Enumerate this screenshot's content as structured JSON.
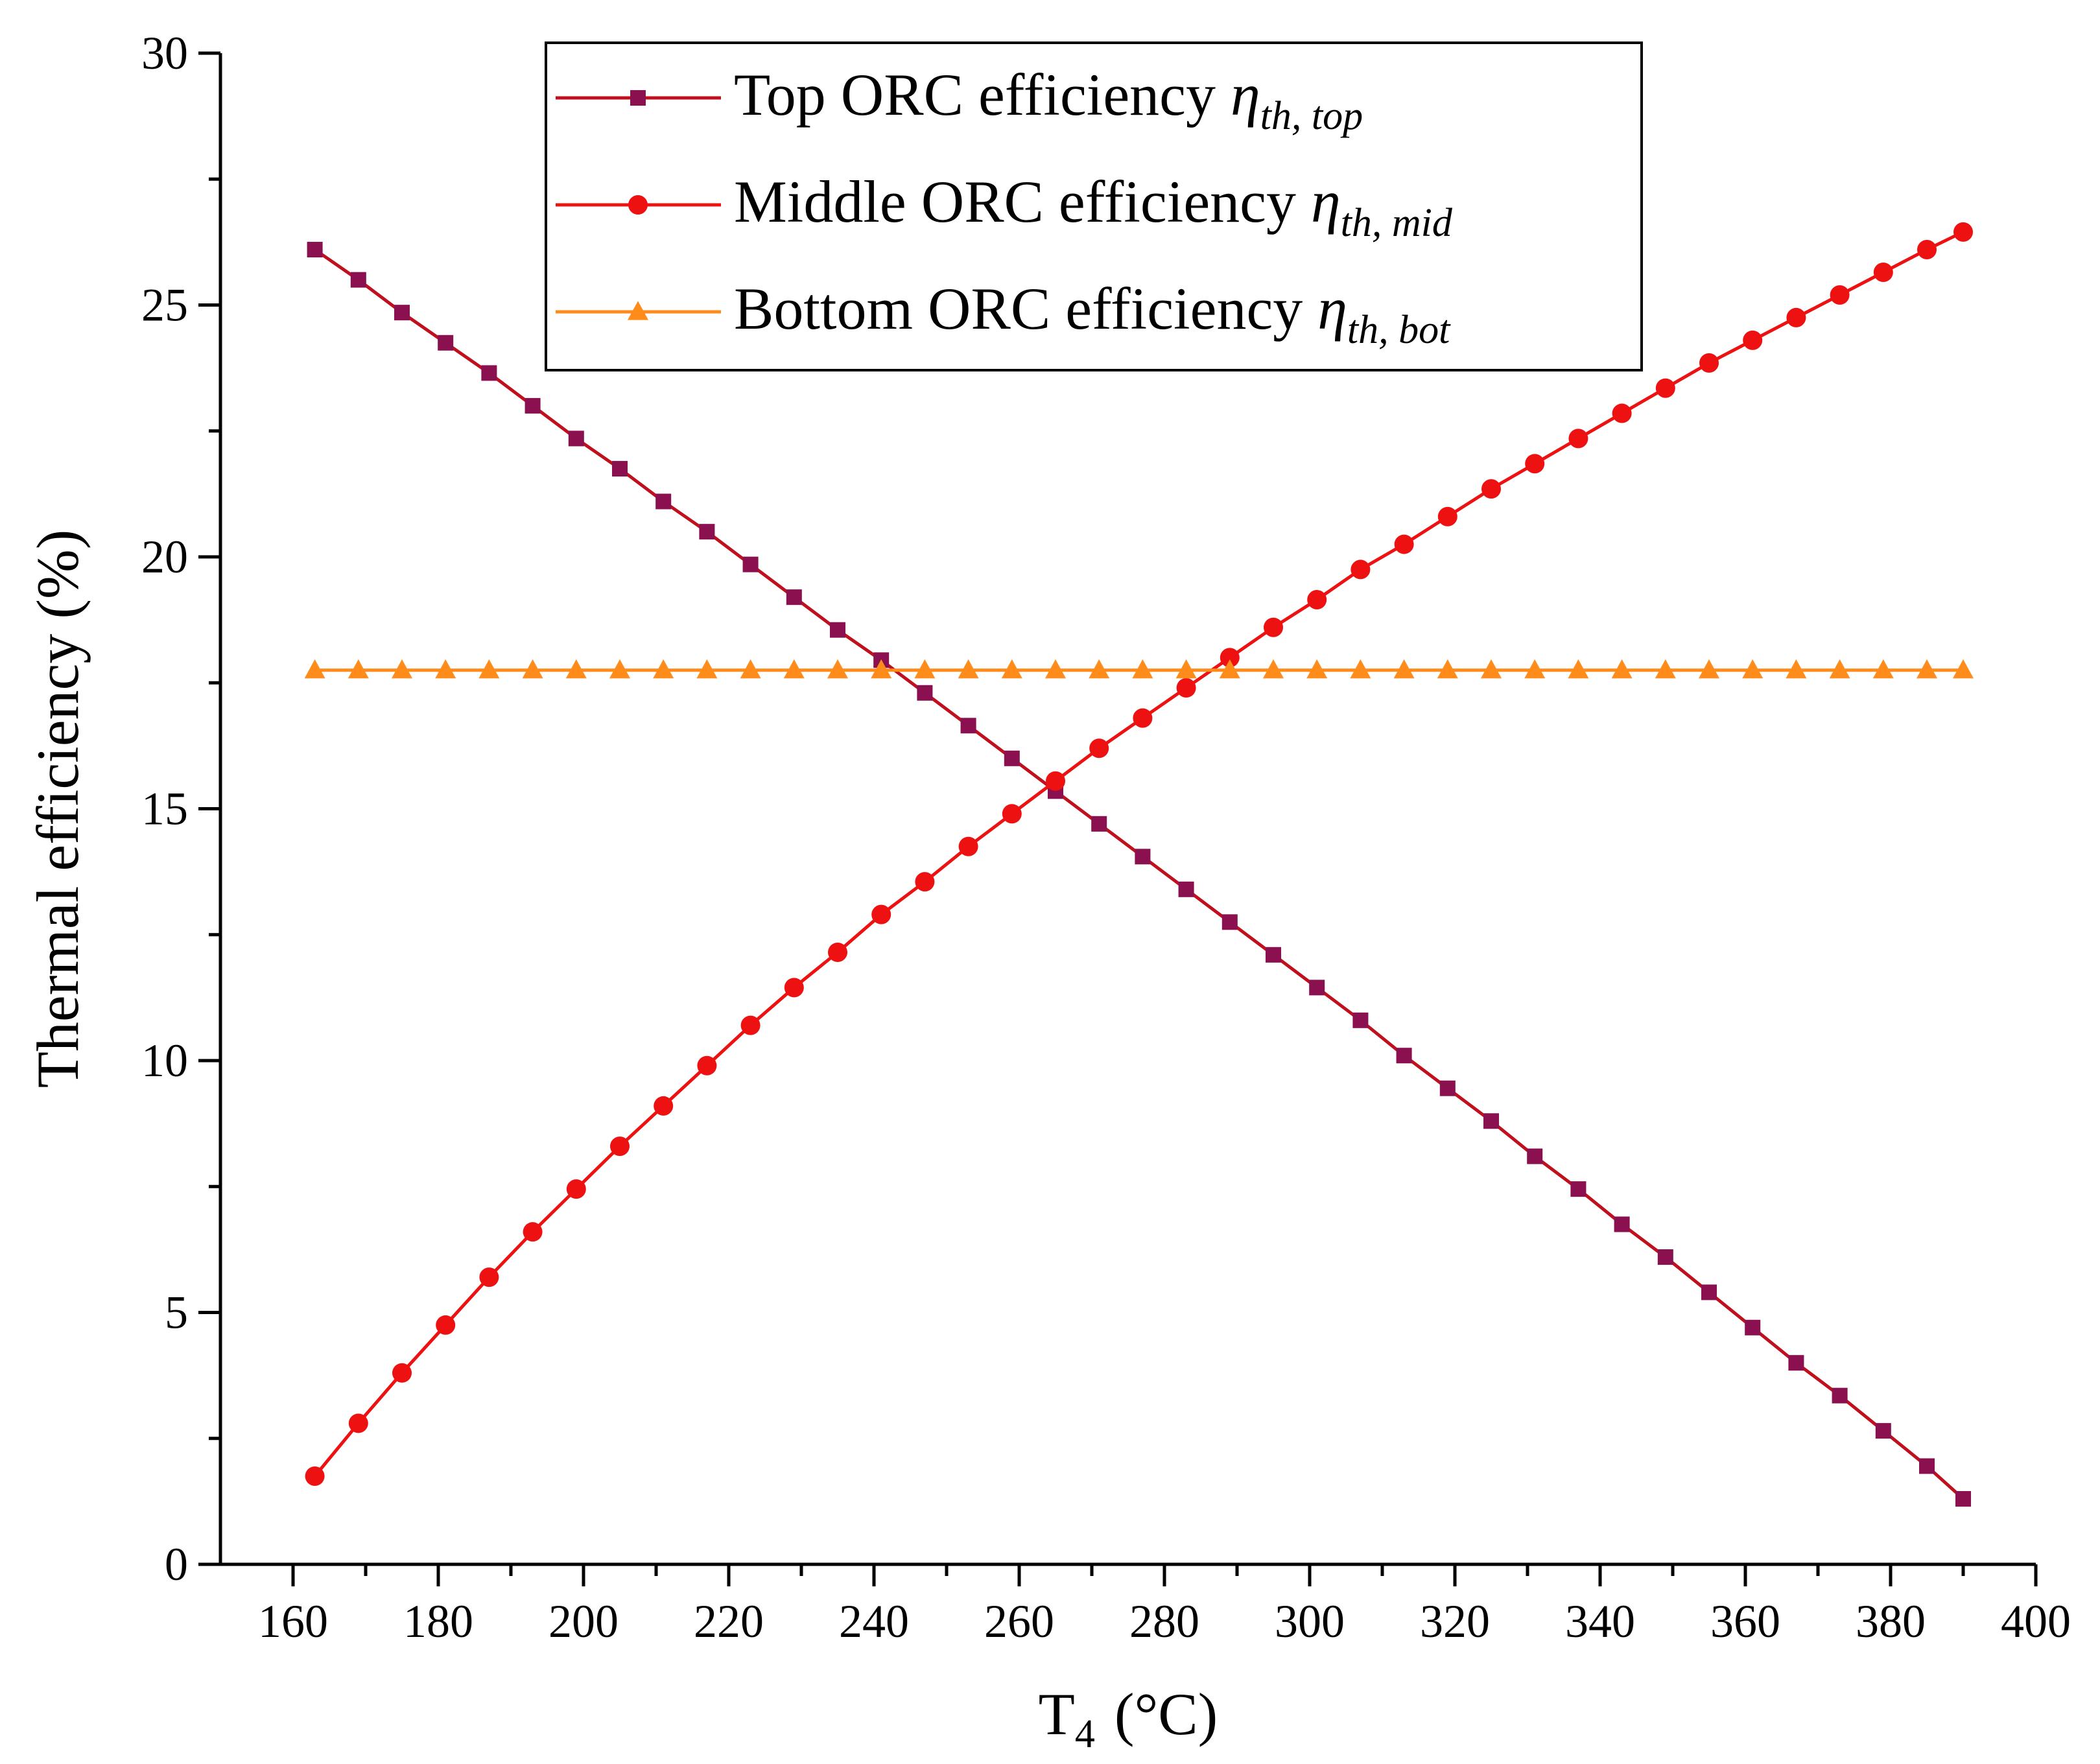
{
  "chart_data": {
    "type": "line",
    "title": "",
    "xlabel": "T",
    "xlabel_sub": "4",
    "xlabel_unit": "(°C)",
    "ylabel": "Thermal efficiency (%)",
    "xlim": [
      150,
      400
    ],
    "ylim": [
      0,
      30
    ],
    "xticks": [
      160,
      180,
      200,
      220,
      240,
      260,
      280,
      300,
      320,
      340,
      360,
      380,
      400
    ],
    "yticks": [
      0,
      5,
      10,
      15,
      20,
      25,
      30
    ],
    "x": [
      163,
      169,
      175,
      181,
      187,
      193,
      199,
      205,
      211,
      217,
      223,
      229,
      235,
      241,
      247,
      253,
      259,
      265,
      271,
      277,
      283,
      289,
      295,
      301,
      307,
      313,
      319,
      325,
      331,
      337,
      343,
      349,
      355,
      361,
      367,
      373,
      379,
      385,
      390
    ],
    "legend_position": "top-center",
    "series": [
      {
        "name": "Top ORC efficiency",
        "symbol": "η",
        "symbol_sub": "th, top",
        "marker": "square",
        "color": "#8B1050",
        "line_color": "#C0101E",
        "values": [
          26.1,
          25.5,
          24.85,
          24.25,
          23.65,
          23.0,
          22.35,
          21.75,
          21.1,
          20.5,
          19.85,
          19.2,
          18.55,
          17.95,
          17.3,
          16.65,
          16.0,
          15.35,
          14.7,
          14.05,
          13.4,
          12.75,
          12.1,
          11.45,
          10.8,
          10.1,
          9.45,
          8.8,
          8.1,
          7.45,
          6.75,
          6.1,
          5.4,
          4.7,
          4.0,
          3.35,
          2.65,
          1.95,
          1.3
        ]
      },
      {
        "name": "Middle ORC efficiency",
        "symbol": "η",
        "symbol_sub": "th, mid",
        "marker": "circle",
        "color": "#EE1111",
        "line_color": "#EE1111",
        "values": [
          1.75,
          2.8,
          3.8,
          4.75,
          5.7,
          6.6,
          7.45,
          8.3,
          9.1,
          9.9,
          10.7,
          11.45,
          12.15,
          12.9,
          13.55,
          14.25,
          14.9,
          15.55,
          16.2,
          16.8,
          17.4,
          18.0,
          18.6,
          19.15,
          19.75,
          20.25,
          20.8,
          21.35,
          21.85,
          22.35,
          22.85,
          23.35,
          23.85,
          24.3,
          24.75,
          25.2,
          25.65,
          26.1,
          26.45
        ]
      },
      {
        "name": "Bottom ORC efficiency",
        "symbol": "η",
        "symbol_sub": "th, bot",
        "marker": "triangle",
        "color": "#FF8C1A",
        "line_color": "#FF8C1A",
        "values": [
          17.75,
          17.75,
          17.75,
          17.75,
          17.75,
          17.75,
          17.75,
          17.75,
          17.75,
          17.75,
          17.75,
          17.75,
          17.75,
          17.75,
          17.75,
          17.75,
          17.75,
          17.75,
          17.75,
          17.75,
          17.75,
          17.75,
          17.75,
          17.75,
          17.75,
          17.75,
          17.75,
          17.75,
          17.75,
          17.75,
          17.75,
          17.75,
          17.75,
          17.75,
          17.75,
          17.75,
          17.75,
          17.75,
          17.75
        ]
      }
    ]
  }
}
